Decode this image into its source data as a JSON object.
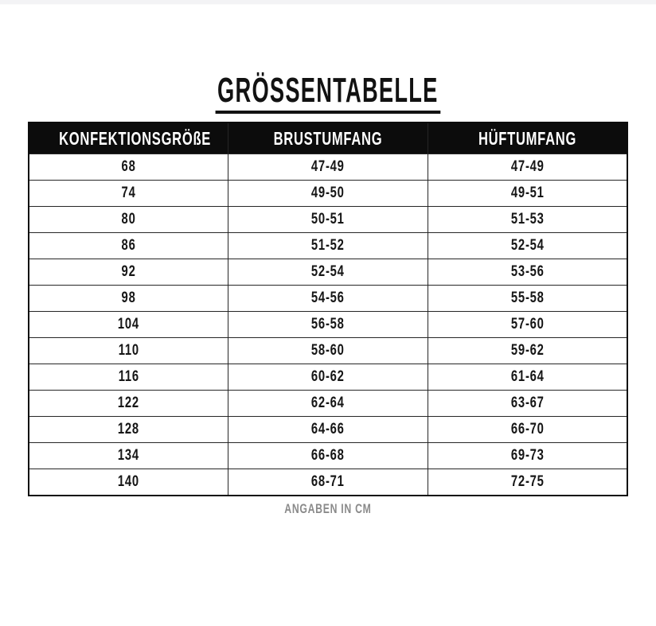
{
  "page": {
    "title": "GRÖSSENTABELLE",
    "footer_note": "ANGABEN IN CM"
  },
  "colors": {
    "header_background": "#0c0c0c",
    "header_text": "#ffffff",
    "body_text": "#161616",
    "grid_line": "#262626",
    "footer_text": "#8a8a8a",
    "page_background": "#ffffff"
  },
  "chart_data": {
    "type": "table",
    "title": "GRÖSSENTABELLE",
    "columns": [
      "KONFEKTIONSGRÖßE",
      "BRUSTUMFANG",
      "HÜFTUMFANG"
    ],
    "rows": [
      [
        "68",
        "47-49",
        "47-49"
      ],
      [
        "74",
        "49-50",
        "49-51"
      ],
      [
        "80",
        "50-51",
        "51-53"
      ],
      [
        "86",
        "51-52",
        "52-54"
      ],
      [
        "92",
        "52-54",
        "53-56"
      ],
      [
        "98",
        "54-56",
        "55-58"
      ],
      [
        "104",
        "56-58",
        "57-60"
      ],
      [
        "110",
        "58-60",
        "59-62"
      ],
      [
        "116",
        "60-62",
        "61-64"
      ],
      [
        "122",
        "62-64",
        "63-67"
      ],
      [
        "128",
        "64-66",
        "66-70"
      ],
      [
        "134",
        "66-68",
        "69-73"
      ],
      [
        "140",
        "68-71",
        "72-75"
      ]
    ],
    "note": "ANGABEN IN CM",
    "unit": "cm",
    "layout": "3 equal columns, black header row, 13 body rows, grid on"
  }
}
